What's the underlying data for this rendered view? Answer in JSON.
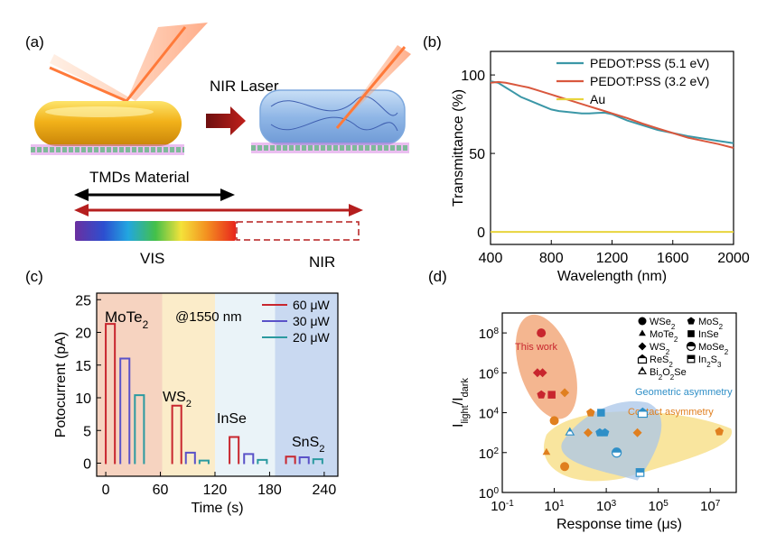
{
  "panels": {
    "a": {
      "label": "(a)",
      "laser_label": "NIR Laser",
      "tmd_label": "TMDs Material",
      "vis_label": "VIS",
      "nir_label": "NIR"
    },
    "b": {
      "label": "(b)"
    },
    "c": {
      "label": "(c)"
    },
    "d": {
      "label": "(d)"
    }
  },
  "colors": {
    "pedot51": "#3b97a7",
    "pedot32": "#d9583e",
    "au": "#e8d43c",
    "c60": "#c8262e",
    "c30": "#5a52c8",
    "c20": "#2b9aa0",
    "bg_mote2": "#f6d3c0",
    "bg_ws2": "#fbecc9",
    "bg_inse": "#eaf3f8",
    "bg_sns2": "#c9d9f1",
    "thiswork": "#c8262e",
    "geometric": "#2f8fc7",
    "contact": "#e07f1f"
  },
  "chart_data": [
    {
      "type": "line",
      "panel": "b",
      "xlabel": "Wavelength (nm)",
      "ylabel": "Transmittance (%)",
      "xlim": [
        400,
        2000
      ],
      "ylim": [
        -8,
        115
      ],
      "xticks": [
        400,
        800,
        1200,
        1600,
        2000
      ],
      "yticks": [
        0,
        50,
        100
      ],
      "legend": "top-right",
      "series": [
        {
          "name": "PEDOT:PSS (5.1 eV)",
          "x": [
            400,
            450,
            500,
            550,
            600,
            650,
            700,
            750,
            800,
            850,
            900,
            950,
            1000,
            1050,
            1100,
            1150,
            1200,
            1250,
            1300,
            1400,
            1500,
            1600,
            1700,
            1800,
            1900,
            2000
          ],
          "y": [
            96,
            95,
            92,
            89,
            86,
            84,
            82,
            80,
            78,
            77,
            76.5,
            76,
            75.5,
            75.5,
            75.8,
            76,
            75,
            73,
            71,
            68,
            65,
            63,
            61,
            59.5,
            58,
            56.5
          ]
        },
        {
          "name": "PEDOT:PSS (3.2 eV)",
          "x": [
            400,
            450,
            500,
            550,
            600,
            650,
            700,
            750,
            800,
            850,
            900,
            950,
            1000,
            1050,
            1100,
            1150,
            1200,
            1250,
            1300,
            1400,
            1500,
            1600,
            1700,
            1800,
            1900,
            2000
          ],
          "y": [
            95,
            95.5,
            95,
            94,
            93,
            92,
            90.5,
            89,
            87.5,
            86,
            84.5,
            83,
            81.5,
            80,
            78.5,
            77,
            75.5,
            74,
            72.5,
            69,
            66,
            63,
            60,
            58,
            56,
            53.5
          ]
        },
        {
          "name": "Au",
          "x": [
            400,
            2000
          ],
          "y": [
            0,
            0
          ]
        }
      ]
    },
    {
      "type": "line",
      "panel": "c",
      "xlabel": "Time (s)",
      "ylabel": "Potocurrent (pA)",
      "xlim": [
        -10,
        255
      ],
      "ylim": [
        -2,
        26
      ],
      "xticks": [
        0,
        60,
        120,
        180,
        240
      ],
      "yticks": [
        0,
        5,
        10,
        15,
        20,
        25
      ],
      "annotation": "@1550 nm",
      "legend": "top-right",
      "materials": [
        {
          "name": "MoTe2",
          "label": "MoTe",
          "sub": "2",
          "range": [
            -10,
            62
          ]
        },
        {
          "name": "WS2",
          "label": "WS",
          "sub": "2",
          "range": [
            62,
            120
          ]
        },
        {
          "name": "InSe",
          "label": "InSe",
          "sub": "",
          "range": [
            120,
            186
          ]
        },
        {
          "name": "SnS2",
          "label": "SnS",
          "sub": "2",
          "range": [
            186,
            255
          ]
        }
      ],
      "series": [
        {
          "name": "60 μW",
          "pulses": [
            {
              "t0": 0,
              "t1": 10,
              "h": 21.3
            },
            {
              "t0": 73,
              "t1": 83,
              "h": 8.8
            },
            {
              "t0": 136,
              "t1": 146,
              "h": 4.0
            },
            {
              "t0": 198,
              "t1": 208,
              "h": 1.0
            }
          ]
        },
        {
          "name": "30 μW",
          "pulses": [
            {
              "t0": 16,
              "t1": 26,
              "h": 16.0
            },
            {
              "t0": 88,
              "t1": 98,
              "h": 1.6
            },
            {
              "t0": 152,
              "t1": 162,
              "h": 1.4
            },
            {
              "t0": 213,
              "t1": 223,
              "h": 0.9
            }
          ]
        },
        {
          "name": "20 μW",
          "pulses": [
            {
              "t0": 32,
              "t1": 42,
              "h": 10.4
            },
            {
              "t0": 103,
              "t1": 113,
              "h": 0.4
            },
            {
              "t0": 167,
              "t1": 177,
              "h": 0.5
            },
            {
              "t0": 228,
              "t1": 238,
              "h": 0.6
            }
          ]
        }
      ]
    },
    {
      "type": "scatter",
      "panel": "d",
      "xlabel": "Response time (μs)",
      "ylabel_main": "I",
      "ylabel_sub1": "light",
      "ylabel_sep": "/I",
      "ylabel_sub2": "dark",
      "xscale": "log",
      "yscale": "log",
      "xlim_exp": [
        -1,
        8
      ],
      "ylim_exp": [
        0,
        9
      ],
      "xticks_exp": [
        -1,
        1,
        3,
        5,
        7
      ],
      "yticks_exp": [
        0,
        2,
        4,
        6,
        8
      ],
      "legend": "top-right",
      "legend_entries": [
        {
          "shape": "circle",
          "text": "WSe",
          "sub": "2"
        },
        {
          "shape": "pentagon",
          "text": "MoS",
          "sub": "2"
        },
        {
          "shape": "triangle",
          "text": "MoTe",
          "sub": "2"
        },
        {
          "shape": "square",
          "text": "InSe",
          "sub": ""
        },
        {
          "shape": "diamond",
          "text": "WS",
          "sub": "2"
        },
        {
          "shape": "halfcircle",
          "text": "MoSe",
          "sub": "2"
        },
        {
          "shape": "house",
          "text": "ReS",
          "sub": "2"
        },
        {
          "shape": "halfsquare",
          "text": "In",
          "sub": "2",
          "tail": "S",
          "sub2": "3"
        },
        {
          "shape": "halftri",
          "text": "Bi",
          "sub": "2",
          "tail": "O",
          "sub2": "2",
          "tail2": "Se"
        }
      ],
      "regions": [
        {
          "name": "This work",
          "color": "thiswork"
        },
        {
          "name": "Geometric asymmetry",
          "color": "geometric"
        },
        {
          "name": "Contact asymmetry",
          "color": "contact"
        }
      ],
      "points": [
        {
          "x": 0.5,
          "y": 8.0,
          "shape": "circle",
          "color": "thiswork"
        },
        {
          "x": 0.35,
          "y": 6.0,
          "shape": "diamond",
          "color": "thiswork"
        },
        {
          "x": 0.55,
          "y": 6.0,
          "shape": "diamond",
          "color": "thiswork"
        },
        {
          "x": 0.5,
          "y": 4.9,
          "shape": "pentagon",
          "color": "thiswork"
        },
        {
          "x": 0.9,
          "y": 4.9,
          "shape": "square",
          "color": "thiswork"
        },
        {
          "x": 1.4,
          "y": 5.0,
          "shape": "diamond",
          "color": "contact"
        },
        {
          "x": 1.0,
          "y": 3.6,
          "shape": "circle",
          "color": "contact"
        },
        {
          "x": 0.7,
          "y": 2.0,
          "shape": "triangle",
          "color": "contact"
        },
        {
          "x": 1.4,
          "y": 1.3,
          "shape": "circle",
          "color": "contact"
        },
        {
          "x": 1.6,
          "y": 3.0,
          "shape": "halftri",
          "color": "geometric"
        },
        {
          "x": 2.4,
          "y": 4.0,
          "shape": "pentagon",
          "color": "contact"
        },
        {
          "x": 2.8,
          "y": 4.0,
          "shape": "square",
          "color": "geometric"
        },
        {
          "x": 2.3,
          "y": 3.0,
          "shape": "diamond",
          "color": "contact"
        },
        {
          "x": 2.75,
          "y": 3.0,
          "shape": "pentagon",
          "color": "geometric"
        },
        {
          "x": 2.95,
          "y": 3.0,
          "shape": "pentagon",
          "color": "geometric"
        },
        {
          "x": 3.4,
          "y": 2.0,
          "shape": "halfcircle",
          "color": "geometric"
        },
        {
          "x": 4.4,
          "y": 4.0,
          "shape": "house",
          "color": "geometric"
        },
        {
          "x": 4.2,
          "y": 3.0,
          "shape": "diamond",
          "color": "contact"
        },
        {
          "x": 4.3,
          "y": 1.0,
          "shape": "halfsquare",
          "color": "geometric"
        },
        {
          "x": 7.35,
          "y": 3.05,
          "shape": "pentagon",
          "color": "contact"
        }
      ]
    }
  ]
}
